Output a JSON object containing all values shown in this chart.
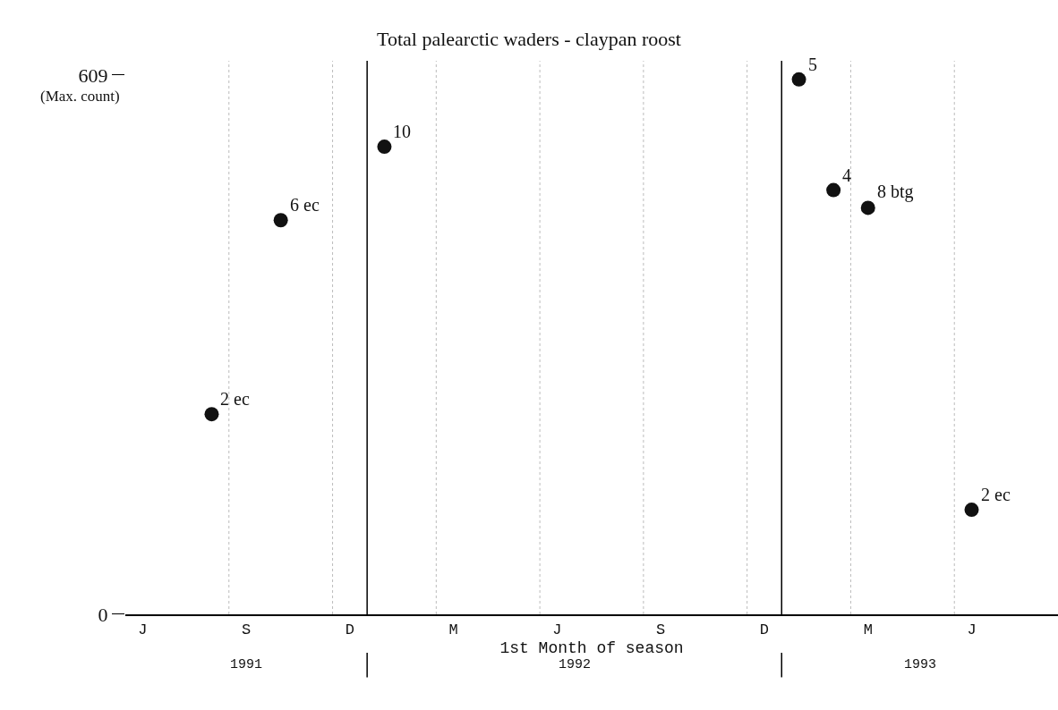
{
  "chart_data": {
    "type": "scatter",
    "title": "Total palearctic waders - claypan roost",
    "xlabel": "1st Month of season",
    "ylabel": "(Max. count)",
    "categories": [
      "J",
      null,
      null,
      "S",
      null,
      null,
      "D",
      null,
      null,
      "M",
      null,
      null,
      "J",
      null,
      null,
      "S",
      null,
      null,
      "D",
      null,
      null,
      "M",
      null,
      null,
      "J",
      null,
      null
    ],
    "series": [
      {
        "color": "#111111",
        "values": [
          null,
          null,
          226,
          null,
          445,
          null,
          null,
          528,
          null,
          null,
          null,
          null,
          null,
          null,
          null,
          null,
          null,
          null,
          null,
          604,
          479,
          459,
          null,
          null,
          118,
          null,
          null
        ]
      }
    ],
    "annotations": [
      "2 ec",
      "6 ec",
      "10",
      "5",
      "4",
      "8 btg",
      "2 ec",
      "1991",
      "1992",
      "1993"
    ],
    "marker": "circle",
    "grid": "x",
    "ylim": [
      0,
      625
    ],
    "yticks": [
      0,
      609
    ]
  }
}
